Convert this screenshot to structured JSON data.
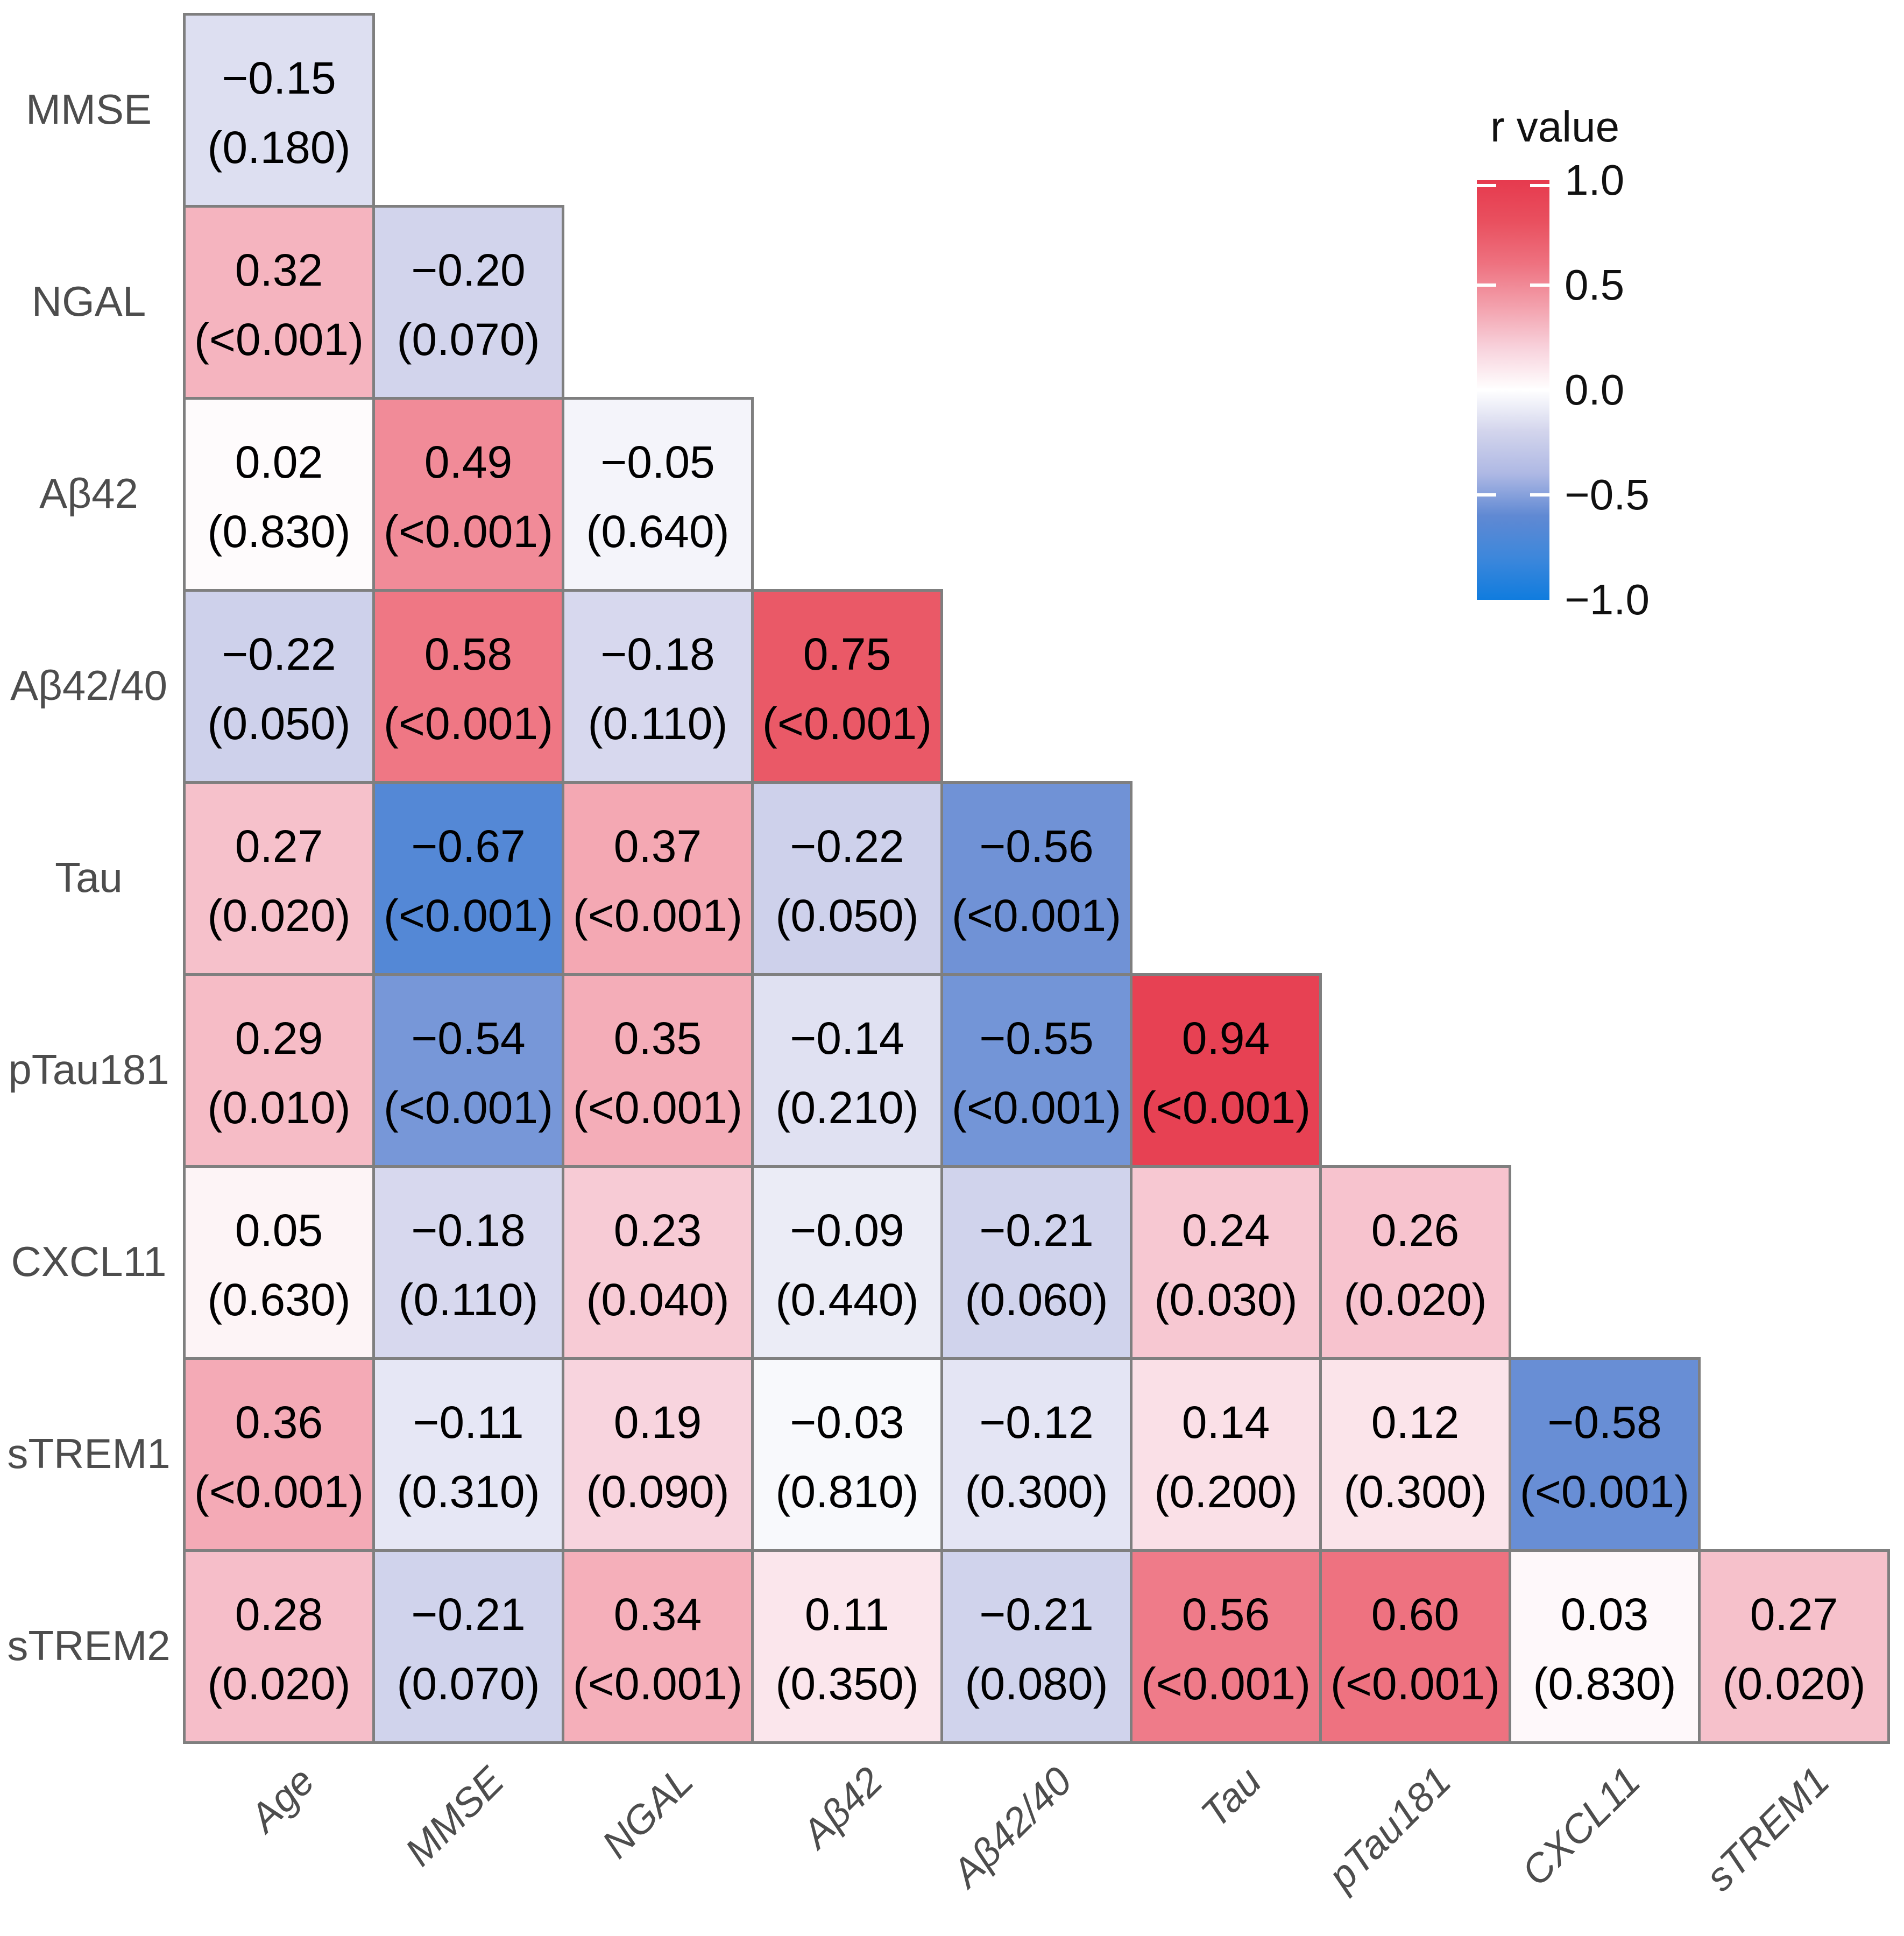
{
  "chart_data": {
    "type": "heatmap",
    "subtype": "lower-triangular-correlation-matrix",
    "title": "",
    "cell_text_format": "r value with p value in parentheses below",
    "x_categories": [
      "Age",
      "MMSE",
      "NGAL",
      "Aβ42",
      "Aβ42/40",
      "Tau",
      "pTau181",
      "CXCL11",
      "sTREM1"
    ],
    "y_categories": [
      "MMSE",
      "NGAL",
      "Aβ42",
      "Aβ42/40",
      "Tau",
      "pTau181",
      "CXCL11",
      "sTREM1",
      "sTREM2"
    ],
    "value_range": [
      -1,
      1
    ],
    "grid": "off",
    "rows": [
      {
        "label": "MMSE",
        "cells": [
          {
            "v": -0.15,
            "r": "−0.15",
            "p": "(0.180)"
          }
        ]
      },
      {
        "label": "NGAL",
        "cells": [
          {
            "v": 0.32,
            "r": "0.32",
            "p": "(<0.001)"
          },
          {
            "v": -0.2,
            "r": "−0.20",
            "p": "(0.070)"
          }
        ]
      },
      {
        "label": "Aβ42",
        "cells": [
          {
            "v": 0.02,
            "r": "0.02",
            "p": "(0.830)"
          },
          {
            "v": 0.49,
            "r": "0.49",
            "p": "(<0.001)"
          },
          {
            "v": -0.05,
            "r": "−0.05",
            "p": "(0.640)"
          }
        ]
      },
      {
        "label": "Aβ42/40",
        "cells": [
          {
            "v": -0.22,
            "r": "−0.22",
            "p": "(0.050)"
          },
          {
            "v": 0.58,
            "r": "0.58",
            "p": "(<0.001)"
          },
          {
            "v": -0.18,
            "r": "−0.18",
            "p": "(0.110)"
          },
          {
            "v": 0.75,
            "r": "0.75",
            "p": "(<0.001)"
          }
        ]
      },
      {
        "label": "Tau",
        "cells": [
          {
            "v": 0.27,
            "r": "0.27",
            "p": "(0.020)"
          },
          {
            "v": -0.67,
            "r": "−0.67",
            "p": "(<0.001)"
          },
          {
            "v": 0.37,
            "r": "0.37",
            "p": "(<0.001)"
          },
          {
            "v": -0.22,
            "r": "−0.22",
            "p": "(0.050)"
          },
          {
            "v": -0.56,
            "r": "−0.56",
            "p": "(<0.001)"
          }
        ]
      },
      {
        "label": "pTau181",
        "cells": [
          {
            "v": 0.29,
            "r": "0.29",
            "p": "(0.010)"
          },
          {
            "v": -0.54,
            "r": "−0.54",
            "p": "(<0.001)"
          },
          {
            "v": 0.35,
            "r": "0.35",
            "p": "(<0.001)"
          },
          {
            "v": -0.14,
            "r": "−0.14",
            "p": "(0.210)"
          },
          {
            "v": -0.55,
            "r": "−0.55",
            "p": "(<0.001)"
          },
          {
            "v": 0.94,
            "r": "0.94",
            "p": "(<0.001)"
          }
        ]
      },
      {
        "label": "CXCL11",
        "cells": [
          {
            "v": 0.05,
            "r": "0.05",
            "p": "(0.630)"
          },
          {
            "v": -0.18,
            "r": "−0.18",
            "p": "(0.110)"
          },
          {
            "v": 0.23,
            "r": "0.23",
            "p": "(0.040)"
          },
          {
            "v": -0.09,
            "r": "−0.09",
            "p": "(0.440)"
          },
          {
            "v": -0.21,
            "r": "−0.21",
            "p": "(0.060)"
          },
          {
            "v": 0.24,
            "r": "0.24",
            "p": "(0.030)"
          },
          {
            "v": 0.26,
            "r": "0.26",
            "p": "(0.020)"
          }
        ]
      },
      {
        "label": "sTREM1",
        "cells": [
          {
            "v": 0.36,
            "r": "0.36",
            "p": "(<0.001)"
          },
          {
            "v": -0.11,
            "r": "−0.11",
            "p": "(0.310)"
          },
          {
            "v": 0.19,
            "r": "0.19",
            "p": "(0.090)"
          },
          {
            "v": -0.03,
            "r": "−0.03",
            "p": "(0.810)"
          },
          {
            "v": -0.12,
            "r": "−0.12",
            "p": "(0.300)"
          },
          {
            "v": 0.14,
            "r": "0.14",
            "p": "(0.200)"
          },
          {
            "v": 0.12,
            "r": "0.12",
            "p": "(0.300)"
          },
          {
            "v": -0.58,
            "r": "−0.58",
            "p": "(<0.001)"
          }
        ]
      },
      {
        "label": "sTREM2",
        "cells": [
          {
            "v": 0.28,
            "r": "0.28",
            "p": "(0.020)"
          },
          {
            "v": -0.21,
            "r": "−0.21",
            "p": "(0.070)"
          },
          {
            "v": 0.34,
            "r": "0.34",
            "p": "(<0.001)"
          },
          {
            "v": 0.11,
            "r": "0.11",
            "p": "(0.350)"
          },
          {
            "v": -0.21,
            "r": "−0.21",
            "p": "(0.080)"
          },
          {
            "v": 0.56,
            "r": "0.56",
            "p": "(<0.001)"
          },
          {
            "v": 0.6,
            "r": "0.60",
            "p": "(<0.001)"
          },
          {
            "v": 0.03,
            "r": "0.03",
            "p": "(0.830)"
          },
          {
            "v": 0.27,
            "r": "0.27",
            "p": "(0.020)"
          }
        ]
      }
    ],
    "legend": {
      "title": "r value",
      "position": "right",
      "tick_labels": [
        "1.0",
        "0.5",
        "0.0",
        "−0.5",
        "−1.0"
      ],
      "tick_values": [
        1,
        0.5,
        0,
        -0.5,
        -1
      ]
    },
    "colors": {
      "background": "#ffffff",
      "grid_line": "#7f7f7f",
      "cell_text": "#000000",
      "axis_label": "#4d4d4d",
      "legend_text": "#111111",
      "positive_stops": [
        [
          0,
          "#ffffff"
        ],
        [
          0.2,
          "#f8d2dc"
        ],
        [
          0.4,
          "#f3a0ac"
        ],
        [
          0.6,
          "#ee7280"
        ],
        [
          0.8,
          "#e9505f"
        ],
        [
          1,
          "#e63a4e"
        ]
      ],
      "negative_stops": [
        [
          0,
          "#ffffff"
        ],
        [
          0.2,
          "#d2d4ec"
        ],
        [
          0.4,
          "#aeb8e4"
        ],
        [
          0.6,
          "#6089d3"
        ],
        [
          0.8,
          "#3d87db"
        ],
        [
          1,
          "#107cde"
        ]
      ]
    }
  }
}
